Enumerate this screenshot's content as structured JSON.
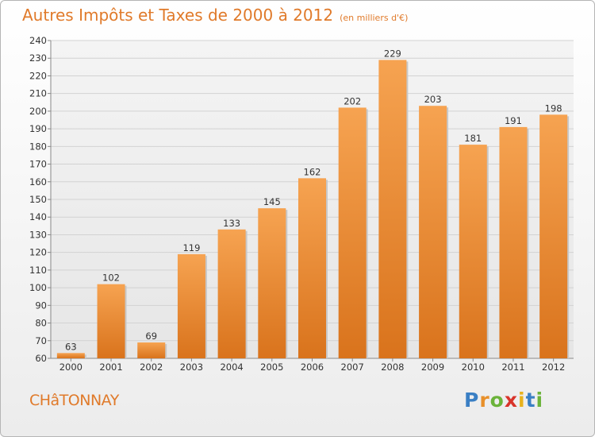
{
  "title": "Autres Impôts et Taxes de 2000 à 2012",
  "subtitle": "(en milliers d'€)",
  "commune": "CHâTONNAY",
  "logo": {
    "letters": [
      "P",
      "r",
      "o",
      "x",
      "i",
      "t",
      "i"
    ],
    "colors": [
      "#3a7fc4",
      "#e8902a",
      "#6bb33a",
      "#d8342b",
      "#e8b21e",
      "#3a7fc4",
      "#6bb33a"
    ]
  },
  "chart_data": {
    "type": "bar",
    "categories": [
      "2000",
      "2001",
      "2002",
      "2003",
      "2004",
      "2005",
      "2006",
      "2007",
      "2008",
      "2009",
      "2010",
      "2011",
      "2012"
    ],
    "values": [
      63,
      102,
      69,
      119,
      133,
      145,
      162,
      202,
      229,
      203,
      181,
      191,
      198
    ],
    "ylim": [
      60,
      240
    ],
    "ytick_step": 10,
    "grid": true,
    "bar_color_top": "#f6a351",
    "bar_color_bottom": "#d9731c"
  }
}
